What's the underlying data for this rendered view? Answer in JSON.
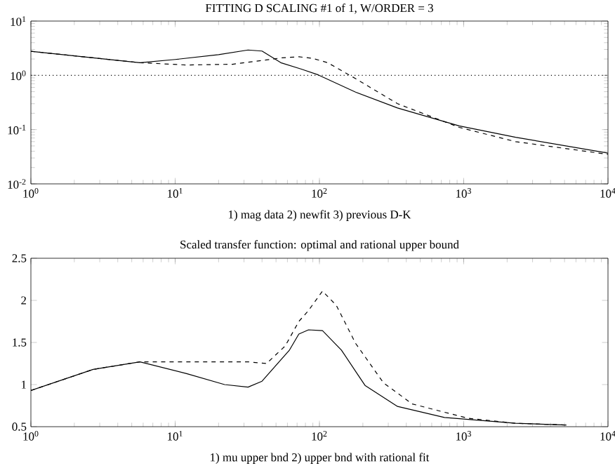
{
  "chart_data": [
    {
      "type": "line",
      "title": "FITTING D SCALING #1 of 1,   W/ORDER = 3",
      "xlabel": "1) mag data    2) newfit   3) previous D-K",
      "log": "xy",
      "xlim": [
        1,
        10000
      ],
      "ylim": [
        0.01,
        10
      ],
      "xticks": [
        {
          "value": 1,
          "label": "10$^{0}$"
        },
        {
          "value": 10,
          "label": "10$^{1}$"
        },
        {
          "value": 100,
          "label": "10$^{2}$"
        },
        {
          "value": 1000,
          "label": "10$^{3}$"
        },
        {
          "value": 10000,
          "label": "10$^{4}$"
        }
      ],
      "yticks": [
        {
          "value": 0.01,
          "label": "10$^{-2}$"
        },
        {
          "value": 0.1,
          "label": "10$^{-1}$"
        },
        {
          "value": 1,
          "label": "10$^{0}$"
        },
        {
          "value": 10,
          "label": "10$^{1}$"
        }
      ],
      "ref_lines": [
        {
          "axis": "y",
          "value": 1,
          "line_style": "dotted"
        }
      ],
      "series": [
        {
          "color": "#000000",
          "line_style": "solid",
          "x": [
            1,
            5.7,
            10,
            20,
            32,
            40,
            54,
            75,
            98,
            178,
            348,
            930,
            2290,
            10000
          ],
          "values": [
            2.77,
            1.71,
            1.96,
            2.4,
            2.93,
            2.8,
            1.71,
            1.3,
            1.02,
            0.49,
            0.25,
            0.117,
            0.072,
            0.037
          ]
        },
        {
          "color": "#000000",
          "line_style": "dashed",
          "x": [
            1,
            5.7,
            12,
            25,
            40,
            55,
            72,
            90,
            114,
            178,
            348,
            930,
            2290,
            10000
          ],
          "values": [
            2.77,
            1.71,
            1.55,
            1.6,
            1.88,
            2.1,
            2.2,
            2.05,
            1.71,
            0.87,
            0.3,
            0.11,
            0.06,
            0.035
          ]
        }
      ]
    },
    {
      "type": "line",
      "title": "Scaled transfer function: optimal and rational upper bound",
      "xlabel": "1) mu upper bnd  2) upper bnd with rational fit",
      "log": "x",
      "xlim": [
        1,
        10000
      ],
      "ylim": [
        0.5,
        2.5
      ],
      "xticks": [
        {
          "value": 1,
          "label": "10$^{0}$"
        },
        {
          "value": 10,
          "label": "10$^{1}$"
        },
        {
          "value": 100,
          "label": "10$^{2}$"
        },
        {
          "value": 1000,
          "label": "10$^{3}$"
        },
        {
          "value": 10000,
          "label": "10$^{4}$"
        }
      ],
      "yticks": [
        0.5,
        1,
        1.5,
        2,
        2.5
      ],
      "series": [
        {
          "color": "#000000",
          "line_style": "solid",
          "x": [
            1,
            2.7,
            5.7,
            12,
            22,
            32,
            40,
            62,
            72,
            84,
            105,
            142,
            207,
            348,
            735,
            2290,
            5150
          ],
          "values": [
            0.93,
            1.18,
            1.27,
            1.13,
            1.0,
            0.97,
            1.04,
            1.41,
            1.6,
            1.65,
            1.64,
            1.41,
            0.99,
            0.74,
            0.61,
            0.54,
            0.52
          ]
        },
        {
          "color": "#000000",
          "line_style": "dashed",
          "x": [
            1,
            2.7,
            5.7,
            12,
            32,
            43,
            58,
            72,
            84,
            105,
            131,
            178,
            278,
            440,
            1070,
            2290,
            5150
          ],
          "values": [
            0.93,
            1.18,
            1.27,
            1.27,
            1.27,
            1.25,
            1.46,
            1.75,
            1.88,
            2.11,
            1.94,
            1.49,
            1.02,
            0.77,
            0.6,
            0.54,
            0.52
          ]
        }
      ]
    }
  ]
}
